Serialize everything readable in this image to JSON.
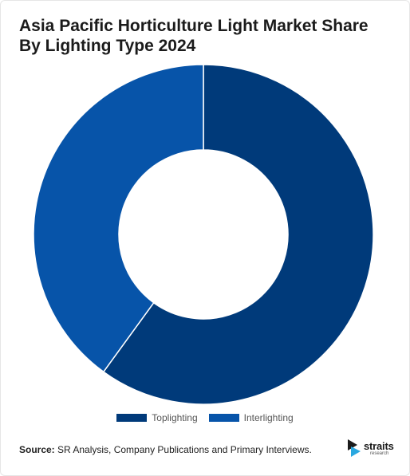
{
  "chart_data": {
    "type": "pie",
    "title": "Asia Pacific Horticulture Light Market Share By Lighting Type 2024",
    "categories": [
      "Toplighting",
      "Interlighting"
    ],
    "values": [
      60,
      40
    ],
    "colors": [
      "#003a7a",
      "#0754a9"
    ],
    "donut": true,
    "legend_position": "bottom-center"
  },
  "footer": {
    "source_label": "Source:",
    "source_text": " SR Analysis, Company Publications and Primary Interviews."
  },
  "logo": {
    "name": "straits",
    "sub": "research",
    "colors": [
      "#1b1b1b",
      "#2aa8e0"
    ]
  }
}
